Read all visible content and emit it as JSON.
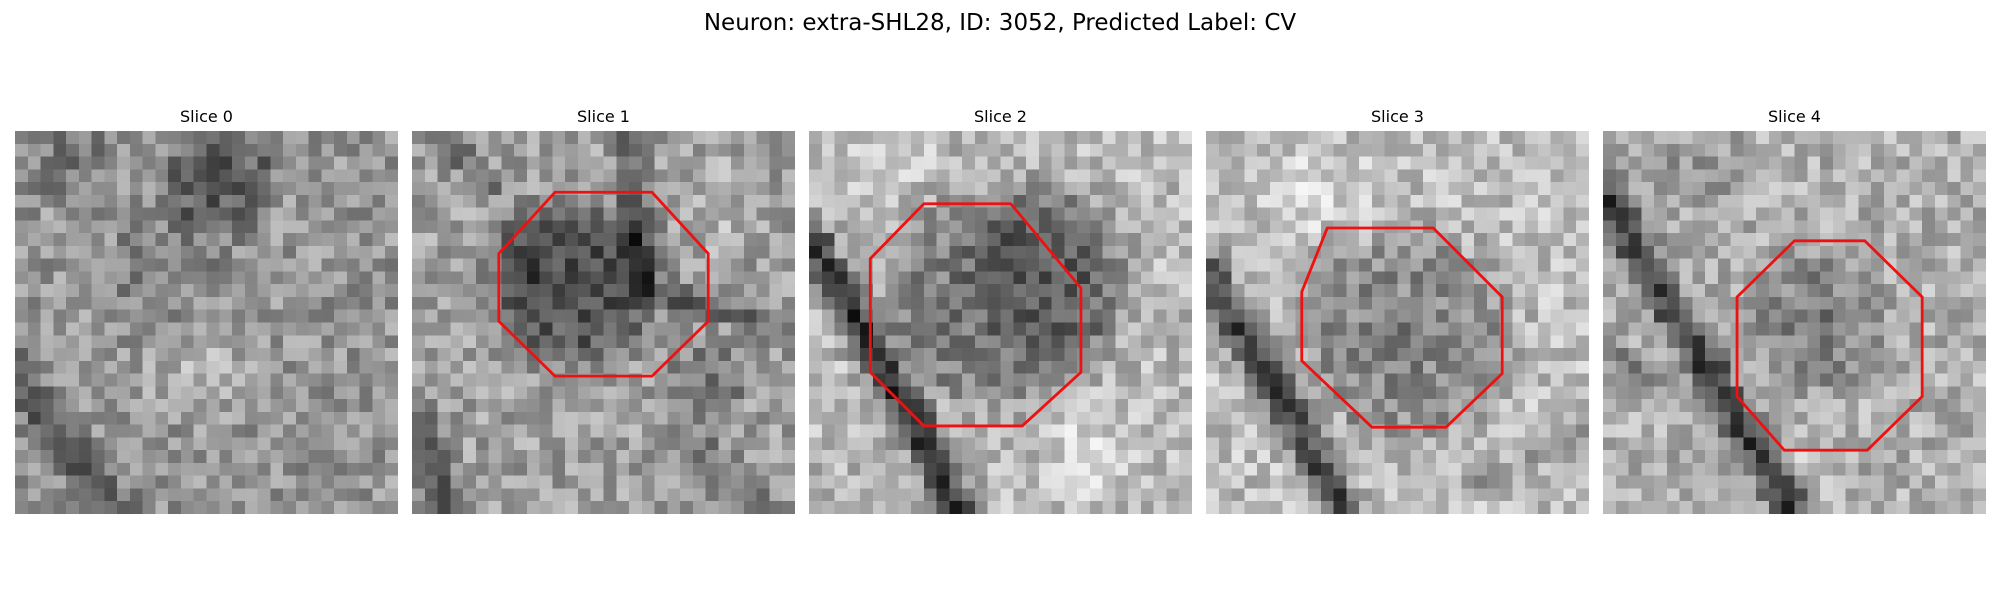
{
  "figure": {
    "title": "Neuron: extra-SHL28, ID: 3052, Predicted Label: CV"
  },
  "panels": [
    {
      "title": "Slice 0",
      "has_outline": false
    },
    {
      "title": "Slice 1",
      "has_outline": true
    },
    {
      "title": "Slice 2",
      "has_outline": true
    },
    {
      "title": "Slice 3",
      "has_outline": true
    },
    {
      "title": "Slice 4",
      "has_outline": true
    }
  ],
  "colors": {
    "outline": "#ee1111",
    "background": "#ffffff"
  },
  "colormap": "grayscale",
  "outline_shape": "octagon"
}
